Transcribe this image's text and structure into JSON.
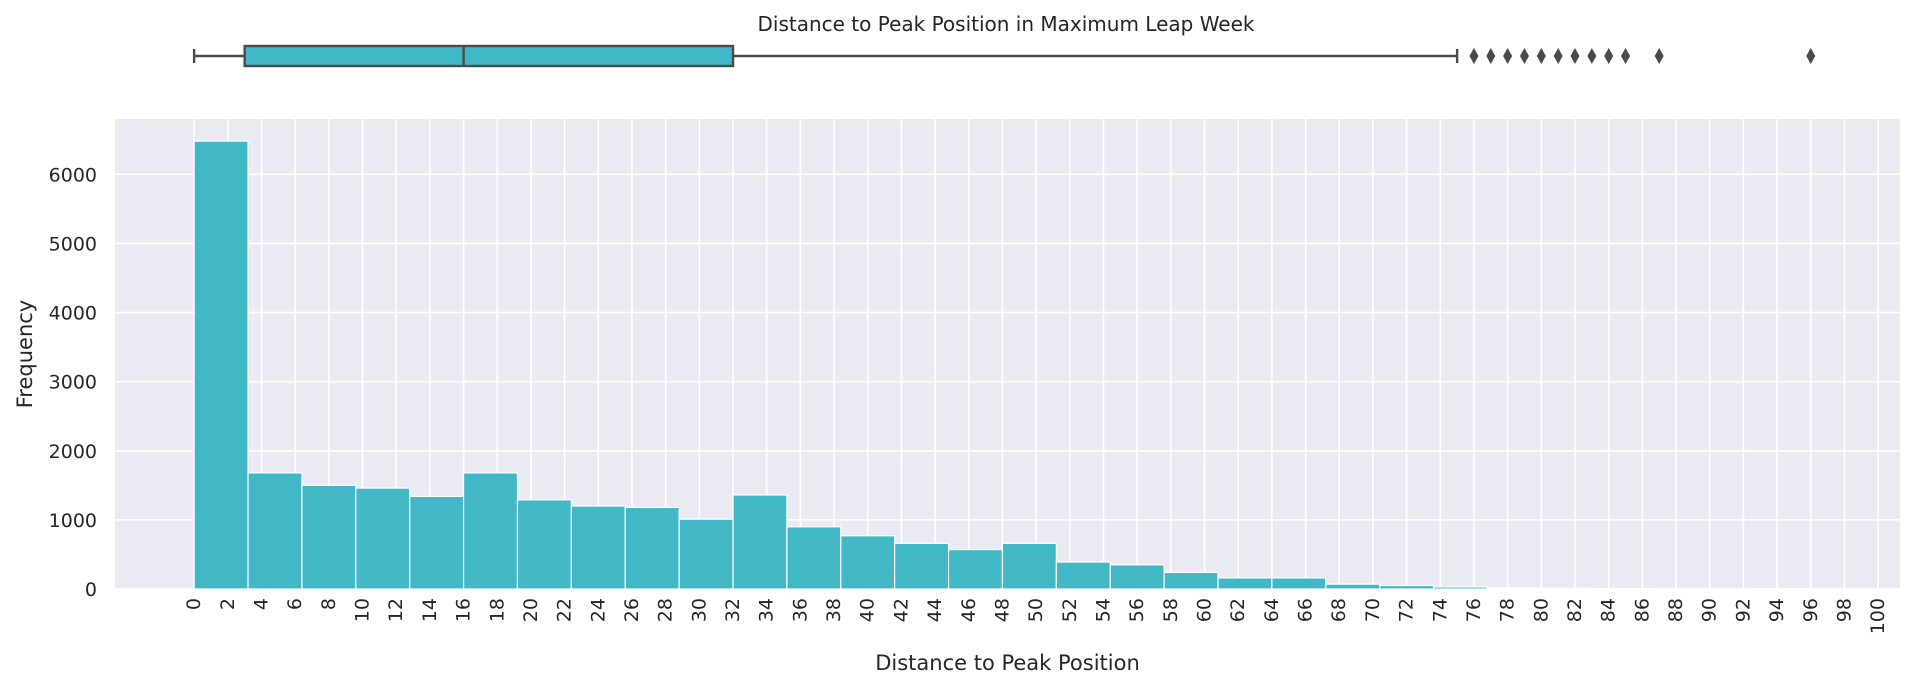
{
  "chart_data": [
    {
      "type": "box",
      "title": "Distance to Peak Position in Maximum Leap Week",
      "whisker_low": 0,
      "q1": 3,
      "median": 16,
      "q3": 32,
      "whisker_high": 75,
      "outliers": [
        76,
        77,
        78,
        79,
        80,
        81,
        82,
        83,
        84,
        85,
        87,
        96
      ],
      "xlim": [
        -4.7,
        101.3
      ],
      "colors": {
        "box": "#42b7c5",
        "line": "#4a4a4a"
      }
    },
    {
      "type": "bar",
      "xlabel": "Distance to Peak Position",
      "ylabel": "Frequency",
      "xlim": [
        -4.7,
        101.3
      ],
      "ylim": [
        0,
        6800
      ],
      "grid": true,
      "bin_edges": [
        0,
        3.2,
        6.4,
        9.6,
        12.8,
        16,
        19.2,
        22.4,
        25.6,
        28.8,
        32,
        35.2,
        38.4,
        41.6,
        44.8,
        48,
        51.2,
        54.4,
        57.6,
        60.8,
        64,
        67.2,
        70.4,
        73.6,
        76.8,
        80,
        83.2,
        86.4,
        89.6,
        92.8,
        96
      ],
      "values": [
        6480,
        1680,
        1500,
        1460,
        1340,
        1680,
        1290,
        1200,
        1180,
        1010,
        1360,
        900,
        770,
        660,
        570,
        660,
        390,
        350,
        240,
        160,
        160,
        70,
        50,
        30,
        15,
        10,
        5,
        0,
        0,
        3
      ],
      "x_ticks": [
        0,
        2,
        4,
        6,
        8,
        10,
        12,
        14,
        16,
        18,
        20,
        22,
        24,
        26,
        28,
        30,
        32,
        34,
        36,
        38,
        40,
        42,
        44,
        46,
        48,
        50,
        52,
        54,
        56,
        58,
        60,
        62,
        64,
        66,
        68,
        70,
        72,
        74,
        76,
        78,
        80,
        82,
        84,
        86,
        88,
        90,
        92,
        94,
        96,
        98,
        100
      ],
      "y_ticks": [
        0,
        1000,
        2000,
        3000,
        4000,
        5000,
        6000
      ],
      "colors": {
        "bar": "#42b7c5",
        "background": "#eaeaf2",
        "grid": "#ffffff"
      }
    }
  ]
}
